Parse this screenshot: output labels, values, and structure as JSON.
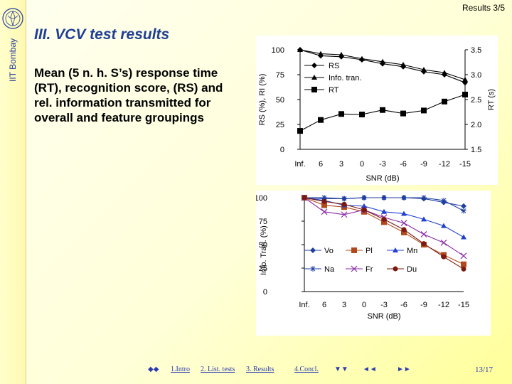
{
  "header": {
    "slide_label": "Results 3/5",
    "title": "III. VCV test results",
    "institution": "IIT Bombay"
  },
  "description": "Mean (5 n. h. S’s) response time (RT), recognition score, (RS) and rel. information transmitted for overall and feature groupings",
  "colors": {
    "title": "#1f3f95",
    "nav": "#2b3bb0",
    "vo": "#1f3fa0",
    "pl": "#b04a1a",
    "mn": "#2040d0",
    "na": "#1f3fa0",
    "fr": "#8a2aa8",
    "du": "#7a1a10"
  },
  "chart_data": [
    {
      "type": "line",
      "categories": [
        "Inf.",
        "6",
        "3",
        "0",
        "-3",
        "-6",
        "-9",
        "-12",
        "-15"
      ],
      "xlabel": "SNR (dB)",
      "ylabel": "RS (%), RI (%)",
      "ylabel_right": "RT (s)",
      "ylim": [
        0,
        100
      ],
      "y_ticks": [
        "0",
        "25",
        "50",
        "75",
        "100"
      ],
      "ylim_right": [
        1.5,
        3.5
      ],
      "y_ticks_right": [
        "1.5",
        "2.0",
        "2.5",
        "3.0",
        "3.5"
      ],
      "legend_position": "inside-upper-middle",
      "series": [
        {
          "name": "RS",
          "marker": "diamond",
          "axis": "left",
          "values": [
            100,
            94,
            93,
            90,
            86,
            83,
            78,
            75,
            67
          ]
        },
        {
          "name": "Info. tran.",
          "marker": "triangle",
          "axis": "left",
          "values": [
            100,
            96,
            95,
            91,
            88,
            85,
            80,
            77,
            70
          ]
        },
        {
          "name": "RT",
          "marker": "square",
          "axis": "right",
          "values": [
            1.87,
            2.09,
            2.21,
            2.2,
            2.29,
            2.22,
            2.28,
            2.46,
            2.6
          ]
        }
      ]
    },
    {
      "type": "line",
      "categories": [
        "Inf.",
        "6",
        "3",
        "0",
        "-3",
        "-6",
        "-9",
        "-12",
        "-15"
      ],
      "xlabel": "SNR (dB)",
      "ylabel": "Info. Tran. (%)",
      "ylim": [
        0,
        100
      ],
      "y_ticks": [
        "0",
        "25",
        "50",
        "75",
        "100"
      ],
      "legend_position": "bottom-left-inside",
      "series": [
        {
          "name": "Vo",
          "marker": "diamond",
          "values": [
            100,
            99,
            99,
            100,
            100,
            100,
            99,
            95,
            91
          ]
        },
        {
          "name": "Pl",
          "marker": "square",
          "values": [
            100,
            92,
            90,
            85,
            74,
            63,
            50,
            39,
            29
          ]
        },
        {
          "name": "Mn",
          "marker": "triangle",
          "values": [
            100,
            97,
            92,
            91,
            85,
            83,
            77,
            70,
            58
          ]
        },
        {
          "name": "Na",
          "marker": "cross",
          "values": [
            100,
            100,
            99,
            100,
            100,
            100,
            100,
            97,
            86
          ]
        },
        {
          "name": "Fr",
          "marker": "x",
          "values": [
            100,
            85,
            82,
            87,
            79,
            73,
            61,
            52,
            38
          ]
        },
        {
          "name": "Du",
          "marker": "circle",
          "values": [
            100,
            96,
            93,
            87,
            77,
            66,
            51,
            37,
            24
          ]
        }
      ]
    }
  ],
  "nav": {
    "first": "◆◆",
    "intro": "1.Intro",
    "list": "2. List. tests",
    "results": "3. Results",
    "concl": "4.Concl.",
    "down": "▼▼",
    "back": "◄◄",
    "fwd": "►►",
    "page": "13/17"
  }
}
